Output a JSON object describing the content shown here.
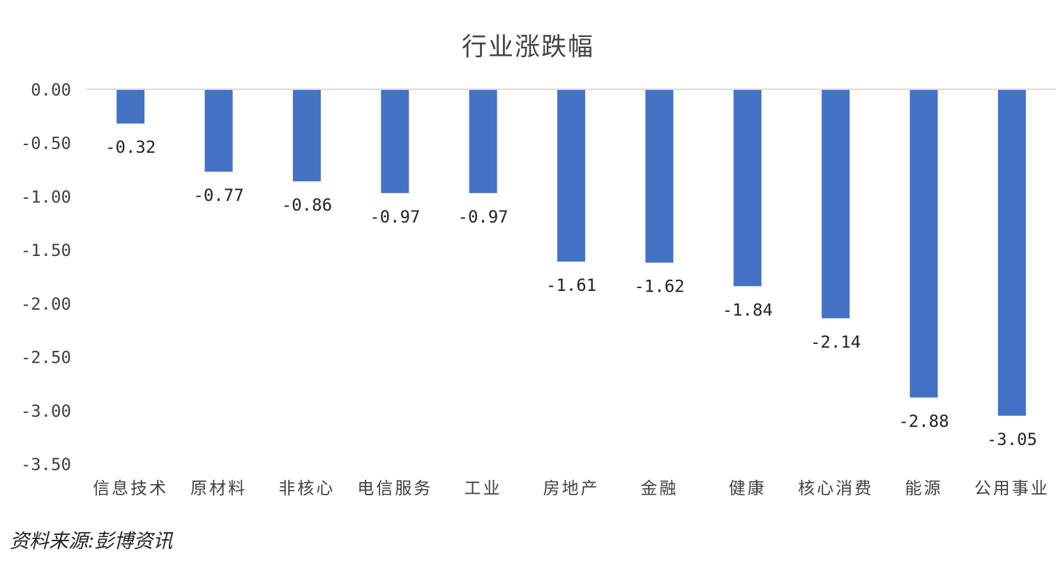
{
  "chart_data": {
    "type": "bar",
    "title": "行业涨跌幅",
    "categories": [
      "信息技术",
      "原材料",
      "非核心",
      "电信服务",
      "工业",
      "房地产",
      "金融",
      "健康",
      "核心消费",
      "能源",
      "公用事业"
    ],
    "values": [
      -0.32,
      -0.77,
      -0.86,
      -0.97,
      -0.97,
      -1.61,
      -1.62,
      -1.84,
      -2.14,
      -2.88,
      -3.05
    ],
    "data_labels": [
      "-0.32",
      "-0.77",
      "-0.86",
      "-0.97",
      "-0.97",
      "-1.61",
      "-1.62",
      "-1.84",
      "-2.14",
      "-2.88",
      "-3.05"
    ],
    "yticks": [
      0,
      -0.5,
      -1,
      -1.5,
      -2,
      -2.5,
      -3,
      -3.5
    ],
    "ytick_labels": [
      "0.00",
      "-0.50",
      "-1.00",
      "-1.50",
      "-2.00",
      "-2.50",
      "-3.00",
      "-3.50"
    ],
    "ylim": [
      -3.5,
      0
    ],
    "xlabel": "",
    "ylabel": "",
    "grid": false,
    "legend": "none",
    "bar_color": "#4472C4"
  },
  "source_note": "资料来源:彭博资讯"
}
